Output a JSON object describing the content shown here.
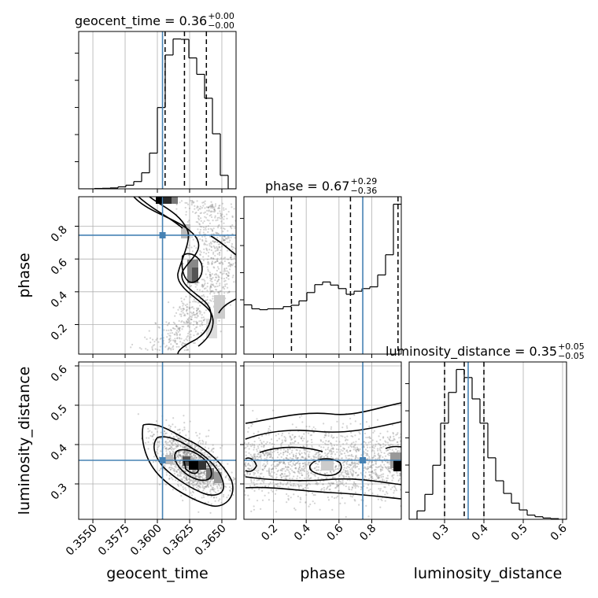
{
  "chart_data": {
    "type": "corner",
    "parameters": [
      "geocent_time",
      "phase",
      "luminosity_distance"
    ],
    "truths": {
      "geocent_time": 0.3604,
      "phase": 0.745,
      "luminosity_distance": 0.36
    },
    "truth_color": "#4682b4",
    "titles": [
      {
        "text": "geocent_time = 0.36",
        "upper": "+0.00",
        "lower": "−0.00"
      },
      {
        "text": "phase = 0.67",
        "upper": "+0.29",
        "lower": "−0.36"
      },
      {
        "text": "luminosity_distance = 0.35",
        "upper": "+0.05",
        "lower": "−0.05"
      }
    ],
    "axes": {
      "geocent_time": {
        "range": [
          0.3539,
          0.3661
        ],
        "ticks": [
          0.355,
          0.3575,
          0.36,
          0.3625,
          0.365
        ],
        "tick_labels": [
          "0.3550",
          "0.3575",
          "0.3600",
          "0.3625",
          "0.3650"
        ]
      },
      "phase": {
        "range": [
          0.02,
          0.98
        ],
        "ticks": [
          0.2,
          0.4,
          0.6,
          0.8
        ],
        "tick_labels": [
          "0.2",
          "0.4",
          "0.6",
          "0.8"
        ]
      },
      "luminosity_distance": {
        "range": [
          0.21,
          0.61
        ],
        "ticks": [
          0.3,
          0.4,
          0.5,
          0.6
        ],
        "tick_labels": [
          "0.3",
          "0.4",
          "0.5",
          "0.6"
        ]
      }
    },
    "quantiles": {
      "geocent_time": [
        0.3606,
        0.3621,
        0.3638
      ],
      "phase": [
        0.31,
        0.67,
        0.96
      ],
      "luminosity_distance": [
        0.3,
        0.35,
        0.4
      ]
    },
    "histograms": {
      "geocent_time": {
        "edges": [
          0.3539,
          0.35451,
          0.35512,
          0.35573,
          0.35634,
          0.35695,
          0.35756,
          0.35817,
          0.35878,
          0.35939,
          0.36,
          0.36061,
          0.36122,
          0.36183,
          0.36244,
          0.36305,
          0.36366,
          0.36427,
          0.36488,
          0.36549,
          0.3661
        ],
        "counts": [
          0,
          0,
          2,
          3,
          5,
          11,
          20,
          40,
          88,
          196,
          446,
          734,
          822,
          820,
          718,
          628,
          497,
          302,
          74,
          0
        ]
      },
      "phase": {
        "edges": [
          0.02,
          0.068,
          0.116,
          0.164,
          0.212,
          0.26,
          0.308,
          0.356,
          0.404,
          0.452,
          0.5,
          0.548,
          0.596,
          0.644,
          0.692,
          0.74,
          0.788,
          0.836,
          0.884,
          0.932,
          0.98
        ],
        "counts": [
          112,
          103,
          101,
          103,
          103,
          108,
          111,
          121,
          140,
          158,
          164,
          157,
          149,
          136,
          143,
          149,
          153,
          180,
          226,
          341
        ]
      },
      "luminosity_distance": {
        "edges": [
          0.21,
          0.23,
          0.25,
          0.27,
          0.29,
          0.31,
          0.33,
          0.35,
          0.37,
          0.39,
          0.41,
          0.43,
          0.45,
          0.47,
          0.49,
          0.51,
          0.53,
          0.55,
          0.57,
          0.59,
          0.61
        ],
        "counts": [
          0,
          26,
          77,
          167,
          297,
          392,
          463,
          438,
          372,
          297,
          190,
          119,
          80,
          50,
          29,
          13,
          8,
          4,
          2,
          0
        ]
      }
    }
  }
}
